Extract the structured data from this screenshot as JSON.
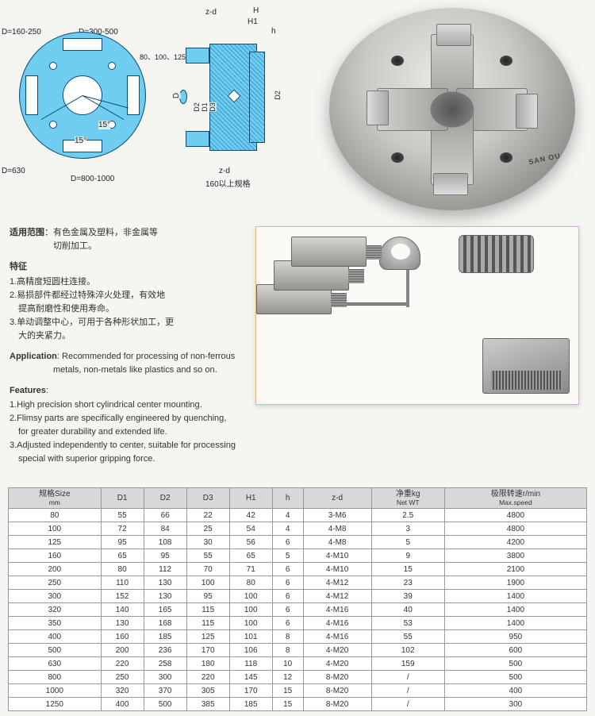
{
  "diagram": {
    "front": {
      "d_160_250": "D=160-250",
      "d_300_500": "D=300-500",
      "d_630": "D=630",
      "d_800_1000": "D=800-1000",
      "angle15_a": "15°",
      "angle15_b": "15°"
    },
    "side": {
      "zd_top": "z-d",
      "h_label": "H",
      "h1_label": "H1",
      "h_small": "h",
      "spec_80_125": "80、100、125规格",
      "d_label": "D",
      "d1_label": "D1",
      "d2_label_a": "D2",
      "d2_label_b": "D2",
      "d3_label": "D3",
      "zd_bottom": "z-d",
      "spec_160": "160以上规格"
    }
  },
  "chuck_brand": "SAN OU",
  "text": {
    "scope_h": "适用范围",
    "scope_body": "：有色金属及塑料，非金属等\n　　　　　切削加工。",
    "feature_h": "特征",
    "f1": "1.高精度短圆柱连接。",
    "f2": "2.易损部件都经过特殊淬火处理，有效地\n　提高耐磨性和使用寿命。",
    "f3": "3.单动调整中心，可用于各种形状加工，更\n　大的夹紧力。",
    "app_h": "Application",
    "app_body": ": Recommended for processing of non-ferrous\n　　　　　metals, non-metals like plastics and so on.",
    "feat_h": "Features",
    "e1": "1.High precision short cylindrical center mounting.",
    "e2": "2.Flimsy parts are specifically engineered by quenching,\n　for greater durability and extended life.",
    "e3": "3.Adjusted independently to center, suitable for processing\n　special with superior gripping force."
  },
  "table": {
    "headers": {
      "size": "规格Size",
      "size_sub": "mm",
      "d1": "D1",
      "d2": "D2",
      "d3": "D3",
      "h1": "H1",
      "h": "h",
      "zd": "z-d",
      "wt": "净重kg",
      "wt_sub": "Net WT",
      "speed": "极限转速r/min",
      "speed_sub": "Max.speed"
    },
    "rows": [
      [
        "80",
        "55",
        "66",
        "22",
        "42",
        "4",
        "3-M6",
        "2.5",
        "4800"
      ],
      [
        "100",
        "72",
        "84",
        "25",
        "54",
        "4",
        "4-M8",
        "3",
        "4800"
      ],
      [
        "125",
        "95",
        "108",
        "30",
        "56",
        "6",
        "4-M8",
        "5",
        "4200"
      ],
      [
        "160",
        "65",
        "95",
        "55",
        "65",
        "5",
        "4-M10",
        "9",
        "3800"
      ],
      [
        "200",
        "80",
        "112",
        "70",
        "71",
        "6",
        "4-M10",
        "15",
        "2100"
      ],
      [
        "250",
        "110",
        "130",
        "100",
        "80",
        "6",
        "4-M12",
        "23",
        "1900"
      ],
      [
        "300",
        "152",
        "130",
        "95",
        "100",
        "6",
        "4-M12",
        "39",
        "1400"
      ],
      [
        "320",
        "140",
        "165",
        "115",
        "100",
        "6",
        "4-M16",
        "40",
        "1400"
      ],
      [
        "350",
        "130",
        "168",
        "115",
        "100",
        "6",
        "4-M16",
        "53",
        "1400"
      ],
      [
        "400",
        "160",
        "185",
        "125",
        "101",
        "8",
        "4-M16",
        "55",
        "950"
      ],
      [
        "500",
        "200",
        "236",
        "170",
        "106",
        "8",
        "4-M20",
        "102",
        "600"
      ],
      [
        "630",
        "220",
        "258",
        "180",
        "118",
        "10",
        "4-M20",
        "159",
        "500"
      ],
      [
        "800",
        "250",
        "300",
        "220",
        "145",
        "12",
        "8-M20",
        "/",
        "500"
      ],
      [
        "1000",
        "320",
        "370",
        "305",
        "170",
        "15",
        "8-M20",
        "/",
        "400"
      ],
      [
        "1250",
        "400",
        "500",
        "385",
        "185",
        "15",
        "8-M20",
        "/",
        "300"
      ]
    ]
  }
}
